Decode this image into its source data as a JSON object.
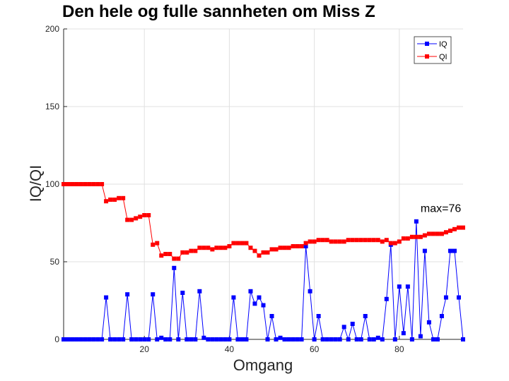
{
  "chart_data": {
    "type": "line",
    "title": "Den hele og fulle sannheten om Miss Z",
    "xlabel": "Omgang",
    "ylabel": "IQ/QI",
    "xlim": [
      1,
      95
    ],
    "ylim": [
      0,
      200
    ],
    "xticks": [
      20,
      40,
      60,
      80
    ],
    "yticks": [
      0,
      50,
      100,
      150,
      200
    ],
    "grid": true,
    "legend_position": "top-right",
    "annotation": {
      "text": "max=76",
      "x": 85,
      "y": 82
    },
    "series": [
      {
        "name": "IQ",
        "color": "#0000ff",
        "values": [
          0,
          0,
          0,
          0,
          0,
          0,
          0,
          0,
          0,
          0,
          27,
          0,
          0,
          0,
          0,
          29,
          0,
          0,
          0,
          0,
          0,
          29,
          0,
          1,
          0,
          0,
          46,
          0,
          30,
          0,
          0,
          0,
          31,
          1,
          0,
          0,
          0,
          0,
          0,
          0,
          27,
          0,
          0,
          0,
          31,
          23,
          27,
          22,
          0,
          15,
          0,
          1,
          0,
          0,
          0,
          0,
          0,
          60,
          31,
          0,
          15,
          0,
          0,
          0,
          0,
          0,
          8,
          0,
          10,
          0,
          0,
          15,
          0,
          0,
          1,
          0,
          26,
          61,
          0,
          34,
          4,
          34,
          0,
          76,
          2,
          57,
          11,
          0,
          0,
          15,
          27,
          57,
          57,
          27,
          0
        ]
      },
      {
        "name": "QI",
        "color": "#ff0000",
        "values": [
          100,
          100,
          100,
          100,
          100,
          100,
          100,
          100,
          100,
          100,
          89,
          90,
          90,
          91,
          91,
          77,
          77,
          78,
          79,
          80,
          80,
          61,
          62,
          54,
          55,
          55,
          52,
          52,
          56,
          56,
          57,
          57,
          59,
          59,
          59,
          58,
          59,
          59,
          59,
          60,
          62,
          62,
          62,
          62,
          59,
          57,
          54,
          56,
          56,
          58,
          58,
          59,
          59,
          59,
          60,
          60,
          60,
          62,
          63,
          63,
          64,
          64,
          64,
          63,
          63,
          63,
          63,
          64,
          64,
          64,
          64,
          64,
          64,
          64,
          64,
          63,
          64,
          62,
          62,
          63,
          65,
          65,
          66,
          66,
          66,
          67,
          68,
          68,
          68,
          68,
          69,
          70,
          71,
          72,
          72
        ]
      }
    ]
  }
}
